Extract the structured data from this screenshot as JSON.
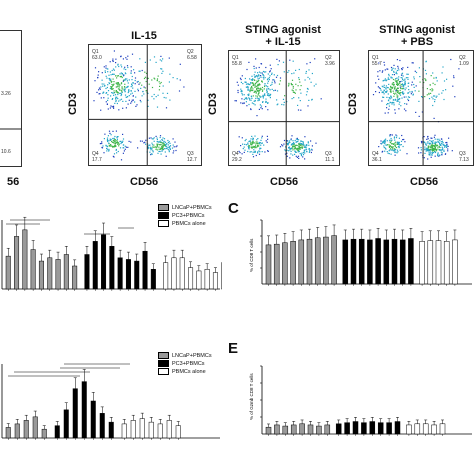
{
  "flow_panels": [
    {
      "title": "",
      "quadrants": {
        "Q1": "",
        "Q2": "3.26",
        "Q3": "10.6",
        "Q4": ""
      },
      "x_ticks": [
        "56"
      ]
    },
    {
      "title": "IL-15",
      "quadrants": {
        "Q1": "63.0",
        "Q2": "6.58",
        "Q3": "12.7",
        "Q4": "17.7"
      },
      "xlabel": "CD56",
      "ylabel": "CD3"
    },
    {
      "title": "STING agonist\n+ IL-15",
      "quadrants": {
        "Q1": "55.8",
        "Q2": "3.96",
        "Q3": "11.1",
        "Q4": "29.2"
      },
      "xlabel": "CD56",
      "ylabel": "CD3"
    },
    {
      "title": "STING agonist\n+ PBS",
      "quadrants": {
        "Q1": "55.7",
        "Q2": "1.09",
        "Q3": "7.13",
        "Q4": "36.1"
      },
      "xlabel": "CD56",
      "ylabel": "CD3"
    }
  ],
  "labels": {
    "title_il15": "IL-15",
    "title_sting_il15_l1": "STING agonist",
    "title_sting_il15_l2": "+ IL-15",
    "title_sting_pbs_l1": "STING agonist",
    "title_sting_pbs_l2": "+ PBS",
    "cd3": "CD3",
    "cd56": "CD56",
    "cd56_partial": "56",
    "panel_c": "C",
    "panel_e": "E",
    "c_ylabel": "% of CD8 T cells",
    "e_ylabel": "% of Gzmb CD8 T cells",
    "q1": "Q1",
    "q2": "Q2",
    "q3": "Q3",
    "q4": "Q4"
  },
  "legend_top": [
    "LNCaP+PBMCs",
    "PC3+PBMCs",
    "PBMCs alone"
  ],
  "legend_bottom": [
    "LNCaP+PBMCs",
    "PC3+PBMCs",
    "PBMCs alone"
  ],
  "colors": {
    "lncap": "#9a9a9a",
    "pc3": "#000000",
    "pbmc": "#ffffff",
    "dot_blue": "#1f3fbf",
    "dot_cyan": "#24a6c8",
    "dot_green": "#3fb54a"
  },
  "chart_data": [
    {
      "type": "bar",
      "panel": "B (partial)",
      "series": [
        {
          "name": "LNCaP+PBMCs",
          "values": [
            2.0,
            3.2,
            3.6,
            2.4,
            1.7,
            1.9,
            1.8,
            2.1,
            1.4
          ]
        },
        {
          "name": "PC3+PBMCs",
          "values": [
            2.1,
            2.9,
            3.3,
            2.6,
            1.9,
            1.8,
            1.7,
            2.3,
            1.2
          ]
        },
        {
          "name": "PBMCs alone",
          "values": [
            1.6,
            1.9,
            1.9,
            1.3,
            1.1,
            1.2,
            1.0,
            1.6,
            1.1
          ]
        }
      ]
    },
    {
      "type": "bar",
      "panel": "C",
      "ylabel": "% of CD8 T cells",
      "series": [
        {
          "name": "LNCaP+PBMCs",
          "values": [
            55,
            56,
            58,
            60,
            62,
            63,
            65,
            66,
            68
          ]
        },
        {
          "name": "PC3+PBMCs",
          "values": [
            62,
            63,
            63,
            62,
            64,
            62,
            63,
            62,
            64
          ]
        },
        {
          "name": "PBMCs alone",
          "values": [
            60,
            61,
            61,
            60,
            62
          ]
        }
      ]
    },
    {
      "type": "bar",
      "panel": "D (partial)",
      "series": [
        {
          "name": "LNCaP+PBMCs",
          "values": [
            0.6,
            0.8,
            1.0,
            1.2,
            0.5
          ]
        },
        {
          "name": "PC3+PBMCs",
          "values": [
            0.7,
            1.6,
            2.8,
            3.2,
            2.1,
            1.4,
            0.9
          ]
        },
        {
          "name": "PBMCs alone",
          "values": [
            0.8,
            1.0,
            1.1,
            0.9,
            0.8,
            1.0,
            0.7
          ]
        }
      ]
    },
    {
      "type": "bar",
      "panel": "E",
      "ylabel": "% of Gzmb CD8 T cells",
      "series": [
        {
          "name": "LNCaP+PBMCs",
          "values": [
            6,
            8,
            7,
            8,
            9,
            8,
            7,
            8
          ]
        },
        {
          "name": "PC3+PBMCs",
          "values": [
            9,
            10,
            11,
            10,
            11,
            10,
            10,
            11
          ]
        },
        {
          "name": "PBMCs alone",
          "values": [
            8,
            9,
            9,
            8,
            9
          ]
        }
      ]
    }
  ]
}
